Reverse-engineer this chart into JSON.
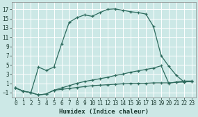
{
  "xlabel": "Humidex (Indice chaleur)",
  "bg_color": "#cce8e6",
  "grid_color": "#ffffff",
  "line_color": "#2e6b5e",
  "xlim": [
    -0.5,
    23.5
  ],
  "ylim": [
    -2,
    18.5
  ],
  "xticks": [
    0,
    1,
    2,
    3,
    4,
    5,
    6,
    7,
    8,
    9,
    10,
    11,
    12,
    13,
    14,
    15,
    16,
    17,
    18,
    19,
    20,
    21,
    22,
    23
  ],
  "yticks": [
    -1,
    1,
    3,
    5,
    7,
    9,
    11,
    13,
    15,
    17
  ],
  "line1_x": [
    0,
    1,
    2,
    3,
    4,
    5,
    6,
    7,
    8,
    9,
    10,
    11,
    12,
    13,
    14,
    15,
    16,
    17,
    18,
    19,
    20,
    21,
    22,
    23
  ],
  "line1_y": [
    0,
    -0.7,
    -1.0,
    4.5,
    3.8,
    4.5,
    9.5,
    14.2,
    15.2,
    15.8,
    15.5,
    16.3,
    17.0,
    17.1,
    16.8,
    16.5,
    16.3,
    16.0,
    13.3,
    7.0,
    4.7,
    2.7,
    1.3,
    1.4
  ],
  "line2_x": [
    0,
    1,
    2,
    3,
    4,
    5,
    6,
    7,
    8,
    9,
    10,
    11,
    12,
    13,
    14,
    15,
    16,
    17,
    18,
    19,
    20,
    21,
    22,
    23
  ],
  "line2_y": [
    0,
    -0.7,
    -1.0,
    -1.5,
    -1.3,
    -0.5,
    0.0,
    0.5,
    1.0,
    1.4,
    1.7,
    2.0,
    2.3,
    2.7,
    3.0,
    3.4,
    3.7,
    4.0,
    4.3,
    4.8,
    1.0,
    1.3,
    1.5,
    1.5
  ],
  "line3_x": [
    0,
    1,
    2,
    3,
    4,
    5,
    6,
    7,
    8,
    9,
    10,
    11,
    12,
    13,
    14,
    15,
    16,
    17,
    18,
    19,
    20,
    21,
    22,
    23
  ],
  "line3_y": [
    0,
    -0.7,
    -1.0,
    -1.5,
    -1.3,
    -0.5,
    -0.3,
    -0.1,
    0.1,
    0.3,
    0.5,
    0.6,
    0.7,
    0.8,
    0.9,
    1.0,
    1.0,
    1.0,
    1.1,
    1.1,
    1.1,
    1.2,
    1.3,
    1.4
  ],
  "tick_fontsize": 5.5,
  "xlabel_fontsize": 6.5,
  "linewidth": 0.9,
  "markersize": 3.5
}
